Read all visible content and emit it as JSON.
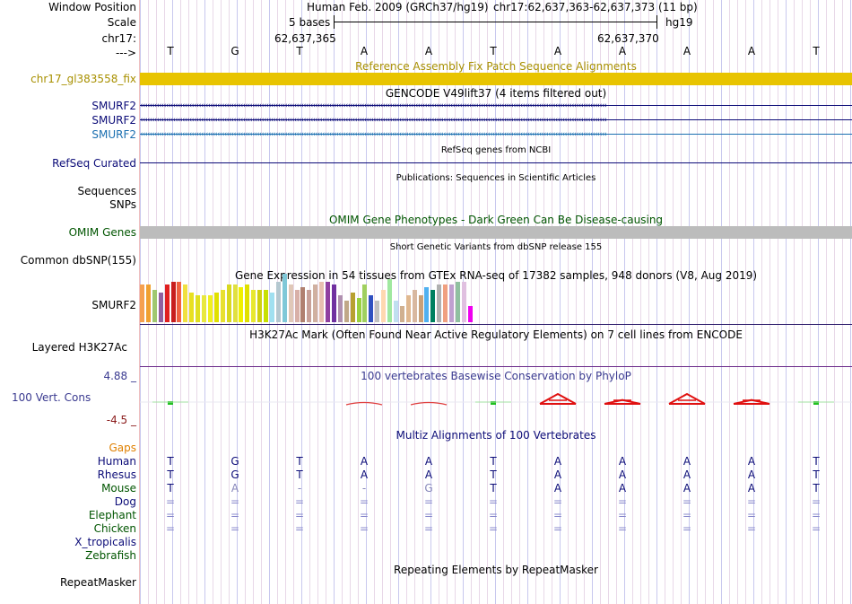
{
  "ruler": {
    "window_label": "Window Position",
    "scale_label": "Scale",
    "chrom_label": "chr17:",
    "strand_label": "--->",
    "assembly_text": "Human Feb. 2009 (GRCh37/hg19)",
    "position_text": "chr17:62,637,363-62,637,373 (11 bp)",
    "scale_text": "5 bases",
    "db_label": "hg19",
    "coord_left": "62,637,365",
    "coord_right": "62,637,370"
  },
  "sequence": [
    "T",
    "G",
    "T",
    "A",
    "A",
    "T",
    "A",
    "A",
    "A",
    "A",
    "T"
  ],
  "tracks": {
    "fix_patch": {
      "title": "Reference Assembly Fix Patch Sequence Alignments",
      "label": "chr17_gl383558_fix",
      "color": "#e8c400",
      "label_color": "#a89000"
    },
    "gencode": {
      "title": "GENCODE V49lift37 (4 items filtered out)",
      "labels": [
        "SMURF2",
        "SMURF2",
        "SMURF2"
      ],
      "colors": [
        "#0c0c78",
        "#0c0c78",
        "#1a6fb0"
      ]
    },
    "refseq": {
      "title": "RefSeq genes from NCBI",
      "label": "RefSeq Curated",
      "color": "#0c0c78"
    },
    "publications": {
      "title": "Publications: Sequences in Scientific Articles",
      "labels": [
        "Sequences",
        "SNPs"
      ]
    },
    "omim": {
      "title": "OMIM Gene Phenotypes - Dark Green Can Be Disease-causing",
      "label": "OMIM Genes",
      "color": "#005500"
    },
    "dbsnp": {
      "title": "Short Genetic Variants from dbSNP release 155",
      "label": "Common dbSNP(155)"
    },
    "gtex": {
      "title": "Gene Expression in 54 tissues from GTEx RNA-seq of 17382 samples, 948 donors (V8, Aug 2019)",
      "label": "SMURF2"
    },
    "h3k27ac": {
      "title": "H3K27Ac Mark (Often Found Near Active Regulatory Elements) on 7 cell lines from ENCODE",
      "label": "Layered H3K27Ac"
    },
    "phylop": {
      "title": "100 vertebrates Basewise Conservation by PhyloP",
      "label": "100 Vert. Cons",
      "max": "4.88 _",
      "min": "-4.5 _",
      "color": "#3a3a90"
    },
    "multiz": {
      "title": "Multiz Alignments of 100 Vertebrates",
      "gaps_label": "Gaps",
      "species": [
        {
          "name": "Human",
          "color": "#0c0c78",
          "row": [
            "T",
            "G",
            "T",
            "A",
            "A",
            "T",
            "A",
            "A",
            "A",
            "A",
            "T"
          ]
        },
        {
          "name": "Rhesus",
          "color": "#0c0c78",
          "row": [
            "T",
            "G",
            "T",
            "A",
            "A",
            "T",
            "A",
            "A",
            "A",
            "A",
            "T"
          ]
        },
        {
          "name": "Mouse",
          "color": "#005500",
          "row": [
            "T",
            "A",
            "-",
            "-",
            "G",
            "T",
            "A",
            "A",
            "A",
            "A",
            "T"
          ]
        },
        {
          "name": "Dog",
          "color": "#0c0c78",
          "row": [
            "=",
            "=",
            "=",
            "=",
            "=",
            "=",
            "=",
            "=",
            "=",
            "=",
            "="
          ]
        },
        {
          "name": "Elephant",
          "color": "#005500",
          "row": [
            "=",
            "=",
            "=",
            "=",
            "=",
            "=",
            "=",
            "=",
            "=",
            "=",
            "="
          ]
        },
        {
          "name": "Chicken",
          "color": "#005500",
          "row": [
            "=",
            "=",
            "=",
            "=",
            "=",
            "=",
            "=",
            "=",
            "=",
            "=",
            "="
          ]
        },
        {
          "name": "X_tropicalis",
          "color": "#0c0c78",
          "row": []
        },
        {
          "name": "Zebrafish",
          "color": "#005500",
          "row": []
        }
      ]
    },
    "repeatmasker": {
      "title": "Repeating Elements by RepeatMasker",
      "label": "RepeatMasker"
    }
  },
  "gtex_values": [
    14,
    14,
    12,
    11,
    14,
    15,
    15,
    14,
    11,
    10,
    10,
    10,
    11,
    12,
    14,
    14,
    13,
    14,
    12,
    12,
    12,
    11,
    15,
    18,
    14,
    12,
    13,
    12,
    14,
    15,
    15,
    14,
    10,
    8,
    11,
    9,
    14,
    10,
    8,
    12,
    16,
    8,
    6,
    10,
    12,
    10,
    13,
    12,
    14,
    14,
    14,
    15,
    15,
    6
  ],
  "gtex_colors": [
    "#f5a050",
    "#f0a030",
    "#a0c870",
    "#9060a0",
    "#e02020",
    "#c81e1e",
    "#f06040",
    "#f0e040",
    "#e8e020",
    "#e0e020",
    "#e8e840",
    "#f0f020",
    "#e0e000",
    "#e8e030",
    "#d8d820",
    "#e0e040",
    "#f0f000",
    "#e0e000",
    "#e8e830",
    "#d0d010",
    "#c8e000",
    "#a0e0f0",
    "#b4c8d0",
    "#7fc8d8",
    "#e0c8b8",
    "#d8b0a8",
    "#b08070",
    "#c8a098",
    "#d0b0a0",
    "#e8c0b0",
    "#9040a0",
    "#7030a0",
    "#b090b0",
    "#c0a888",
    "#b8a030",
    "#9ad040",
    "#a0d060",
    "#3050c0",
    "#c0c0c0",
    "#ffd8b0",
    "#a0e8a0",
    "#c0e0f0",
    "#d0b090",
    "#e0b890",
    "#d8b8a0",
    "#c8a078",
    "#50b0f0",
    "#008060",
    "#b0b0b0",
    "#f0a080",
    "#c0a0d0",
    "#90c0a0",
    "#e0c0e0",
    "#f000f0"
  ],
  "phylop_peaks": [
    {
      "col": 0,
      "h": 2
    },
    {
      "col": 3,
      "h": -1
    },
    {
      "col": 4,
      "h": -1
    },
    {
      "col": 5,
      "h": 1
    },
    {
      "col": 6,
      "h": 10
    },
    {
      "col": 7,
      "h": 4
    },
    {
      "col": 8,
      "h": 10
    },
    {
      "col": 9,
      "h": 4
    },
    {
      "col": 10,
      "h": 2
    }
  ]
}
